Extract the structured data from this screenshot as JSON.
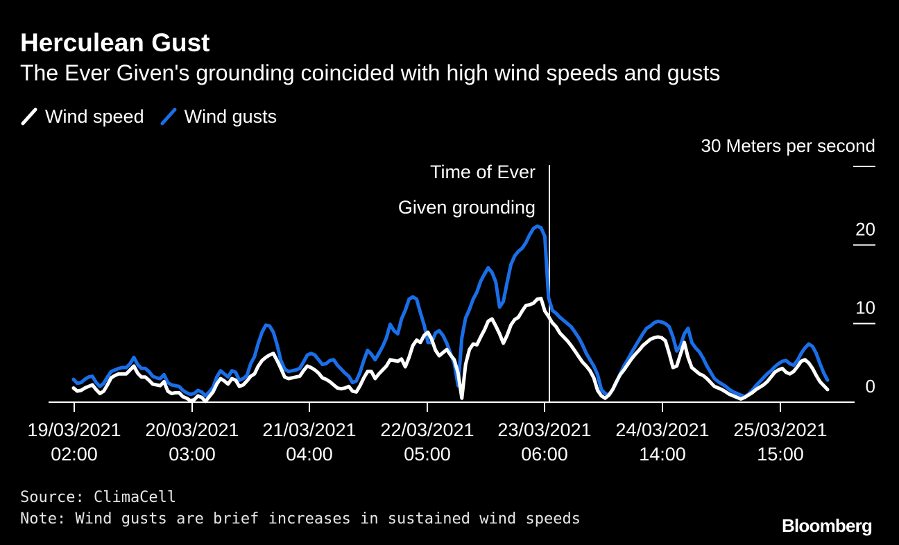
{
  "colors": {
    "background": "#000000",
    "text": "#ffffff",
    "wind_speed": "#ffffff",
    "wind_gusts": "#1a6fe8"
  },
  "title": "Herculean Gust",
  "subtitle": "The Ever Given's grounding coincided with high wind speeds and gusts",
  "legend": [
    {
      "label": "Wind speed",
      "color": "#ffffff"
    },
    {
      "label": "Wind gusts",
      "color": "#1a6fe8"
    }
  ],
  "source": "Source: ClimaCell",
  "note": "Note: Wind gusts are brief increases in sustained wind speeds",
  "brand": "Bloomberg",
  "chart_data": {
    "type": "line",
    "unit_label": "30 Meters per second",
    "ylim": [
      0,
      30
    ],
    "y_ticks": [
      "0",
      "10",
      "20"
    ],
    "y_axis_side": "right",
    "x_tick_labels": [
      [
        "19/03/2021",
        "02:00"
      ],
      [
        "20/03/2021",
        "03:00"
      ],
      [
        "21/03/2021",
        "04:00"
      ],
      [
        "22/03/2021",
        "05:00"
      ],
      [
        "23/03/2021",
        "06:00"
      ],
      [
        "24/03/2021",
        "14:00"
      ],
      [
        "25/03/2021",
        "15:00"
      ]
    ],
    "annotation": {
      "lines": [
        "Time of Ever",
        "Given grounding"
      ],
      "at_tick": 4
    },
    "series": [
      {
        "name": "Wind speed",
        "color": "#ffffff",
        "values": [
          1.8,
          1.4,
          1.5,
          1.8,
          2,
          2.2,
          1.6,
          1.1,
          1.4,
          2.2,
          3.1,
          3.4,
          3.6,
          3.6,
          3.6,
          4.1,
          4.6,
          3.7,
          3.2,
          3.2,
          2.8,
          2.3,
          2.2,
          2.1,
          2.6,
          1.4,
          1.1,
          1.2,
          1.2,
          0.7,
          0.5,
          0.2,
          0.3,
          0.8,
          0.6,
          0.1,
          0.7,
          1.3,
          2.3,
          3,
          2.7,
          2.3,
          3,
          2.8,
          2,
          2.2,
          2.7,
          3.3,
          3.6,
          4.6,
          5.3,
          5.7,
          6,
          6.2,
          5.3,
          4.3,
          3.2,
          3,
          3.1,
          3.2,
          3.3,
          4,
          4.6,
          4.4,
          4.1,
          3.7,
          3.1,
          2.9,
          2.6,
          2.2,
          1.8,
          1.7,
          1.8,
          2,
          1.4,
          1.3,
          2.1,
          3.1,
          3.9,
          3.9,
          3,
          3.6,
          4.1,
          4.6,
          5.4,
          5.3,
          5.2,
          5.5,
          4.5,
          5.7,
          7.2,
          7.9,
          7.6,
          8.5,
          8.9,
          8,
          6.6,
          5.9,
          6.3,
          6.7,
          6,
          5.4,
          3.7,
          0.5,
          4.8,
          6.7,
          7.4,
          7.3,
          8.3,
          9.2,
          10.3,
          10.6,
          9.7,
          8.7,
          7.5,
          8.5,
          9.8,
          10.5,
          10.8,
          11.6,
          12.3,
          12.4,
          12.6,
          13.1,
          13.2,
          11.6,
          10.9,
          10.1,
          9.6,
          8.8,
          8.3,
          7.8,
          7.2,
          6.5,
          5.8,
          5.1,
          4.6,
          4,
          3.1,
          1.5,
          0.8,
          0.5,
          0.9,
          1.6,
          2.6,
          3.5,
          4.1,
          4.8,
          5.5,
          6.1,
          6.6,
          7.2,
          7.6,
          8,
          8.2,
          8.3,
          8.2,
          7.8,
          6.2,
          4.4,
          4.6,
          6.1,
          7.6,
          5.7,
          4.4,
          4,
          3.6,
          3.4,
          3,
          2.5,
          2,
          1.8,
          1.6,
          1.3,
          1,
          0.8,
          0.6,
          0.4,
          0.6,
          0.9,
          1.2,
          1.6,
          1.9,
          2.2,
          2.6,
          3.2,
          3.8,
          4.1,
          4.3,
          3.8,
          3.6,
          3.9,
          4.5,
          5.2,
          5.4,
          5,
          4.3,
          3.4,
          2.6,
          2.1,
          1.6
        ]
      },
      {
        "name": "Wind gusts",
        "color": "#1a6fe8",
        "values": [
          2.9,
          2.4,
          2.5,
          2.9,
          3.2,
          3.3,
          2.5,
          2,
          2.4,
          3.2,
          3.9,
          4.1,
          4.3,
          4.4,
          4.4,
          4.9,
          5.7,
          4.8,
          4.3,
          4.3,
          3.9,
          3.3,
          3.1,
          3,
          3.5,
          2.5,
          2.2,
          2.1,
          2,
          1.5,
          1.2,
          1,
          1.1,
          1.5,
          1.3,
          0.8,
          1.3,
          1.9,
          3.2,
          4,
          3.6,
          3.2,
          4,
          3.8,
          2.8,
          3,
          3.4,
          4.9,
          5.8,
          7.5,
          8.9,
          9.8,
          9.7,
          8.9,
          7.3,
          5.3,
          4.2,
          3.9,
          4,
          4.1,
          4.3,
          5.1,
          6,
          6.2,
          6,
          5.4,
          4.8,
          4.9,
          5.3,
          5.4,
          4.7,
          4.2,
          3.7,
          3.3,
          2.5,
          2.7,
          3.8,
          5.3,
          6.6,
          6.1,
          5.4,
          6.2,
          7.1,
          8.2,
          9.9,
          9.1,
          8.7,
          10.6,
          11.7,
          13.1,
          13.4,
          13.1,
          11.4,
          9.8,
          7.6,
          7.6,
          8.8,
          9.1,
          8.5,
          7.5,
          6.2,
          4.9,
          2.1,
          8.2,
          10.7,
          11.8,
          13.1,
          14,
          15.4,
          16.3,
          17.1,
          16.5,
          15.3,
          12.1,
          12.8,
          15.2,
          17.5,
          18.6,
          19.2,
          19.6,
          20.3,
          21.3,
          22.1,
          22.4,
          22.2,
          21.1,
          13.3,
          11.7,
          11.3,
          10.8,
          10.4,
          10,
          9.6,
          8.9,
          8.2,
          7.3,
          6.2,
          5.4,
          4.6,
          3.5,
          1.6,
          1.1,
          0.9,
          1.6,
          2.5,
          3.6,
          4.6,
          5.4,
          6.3,
          7.1,
          7.9,
          8.7,
          9.4,
          9.7,
          10.1,
          10.3,
          10.2,
          10,
          9.6,
          8.3,
          6.5,
          7.2,
          8.7,
          9.4,
          7.6,
          6.9,
          6.4,
          5.6,
          4.6,
          3.8,
          3,
          2.6,
          2.3,
          2,
          1.6,
          1.3,
          1.1,
          0.9,
          0.7,
          1,
          1.5,
          2.1,
          2.6,
          3.1,
          3.6,
          4,
          4.5,
          4.9,
          5.2,
          5.3,
          4.9,
          4.7,
          5.3,
          6.2,
          6.9,
          7.4,
          7.1,
          6.2,
          4.9,
          3.7,
          2.8
        ]
      }
    ]
  }
}
